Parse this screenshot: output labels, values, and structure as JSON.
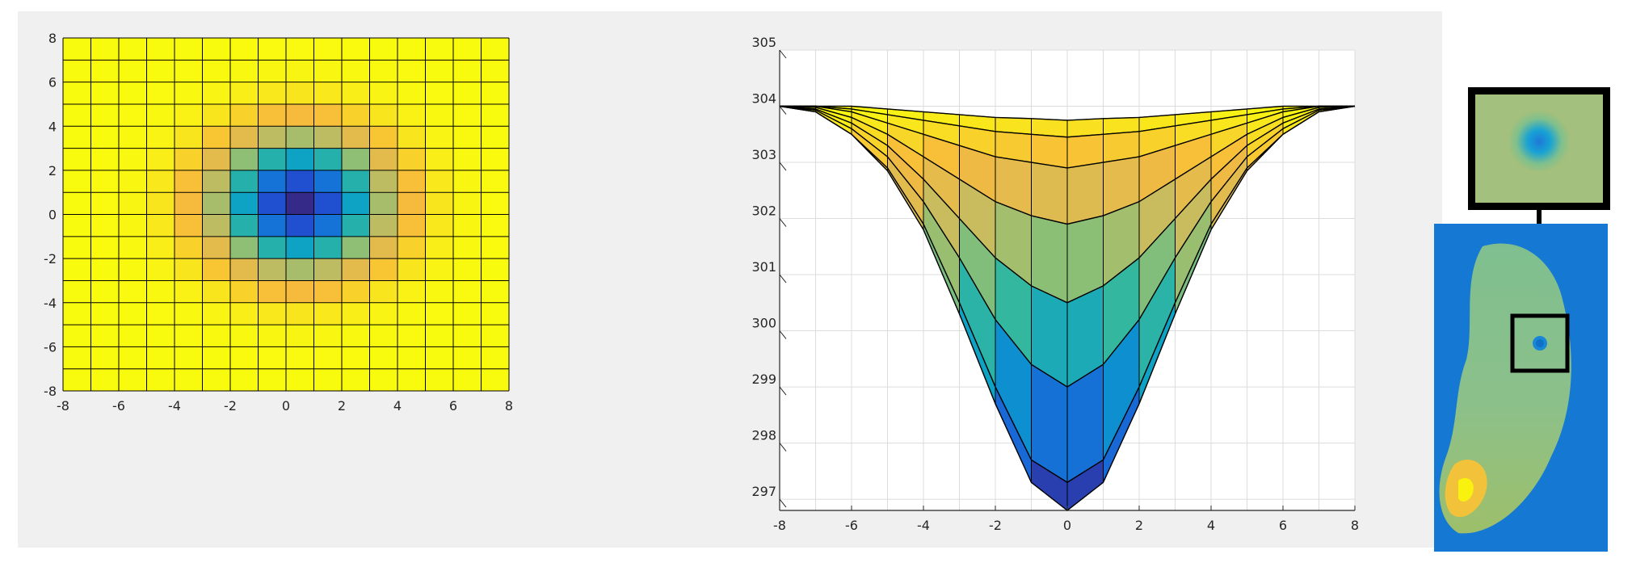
{
  "chart_data": [
    {
      "type": "heatmap",
      "title": "",
      "xlabel": "",
      "ylabel": "",
      "xlim": [
        -8,
        8
      ],
      "ylim": [
        -8,
        8
      ],
      "xticks": [
        "-8",
        "-6",
        "-4",
        "-2",
        "0",
        "2",
        "4",
        "6",
        "8"
      ],
      "yticks": [
        "8",
        "6",
        "4",
        "2",
        "0",
        "-2",
        "-4",
        "-6",
        "-8"
      ],
      "grid_step": 1,
      "colormap": "parula",
      "center": [
        0.5,
        0.5
      ],
      "value_range": [
        296.8,
        304.0
      ],
      "colors": {
        "low": "#352a87",
        "mid": "#0fa5c9",
        "high": "#f9fb0e"
      }
    },
    {
      "type": "surface",
      "title": "",
      "xlabel": "",
      "ylabel": "",
      "xlim": [
        -8,
        8
      ],
      "ylim": [
        296.8,
        305
      ],
      "xticks": [
        "-8",
        "-6",
        "-4",
        "-2",
        "0",
        "2",
        "4",
        "6",
        "8"
      ],
      "yticks": [
        "305",
        "304",
        "303",
        "302",
        "301",
        "300",
        "299",
        "298",
        "297"
      ],
      "x": [
        -8,
        -7,
        -6,
        -5,
        -4,
        -3,
        -2,
        -1,
        0,
        1,
        2,
        3,
        4,
        5,
        6,
        7,
        8
      ],
      "profiles": [
        {
          "values": [
            304.0,
            304.0,
            304.0,
            303.95,
            303.9,
            303.85,
            303.8,
            303.78,
            303.75,
            303.78,
            303.8,
            303.85,
            303.9,
            303.95,
            304.0,
            304.0,
            304.0
          ]
        },
        {
          "values": [
            304.0,
            304.0,
            303.95,
            303.85,
            303.75,
            303.65,
            303.55,
            303.5,
            303.45,
            303.5,
            303.55,
            303.65,
            303.75,
            303.85,
            303.95,
            304.0,
            304.0
          ]
        },
        {
          "values": [
            304.0,
            304.0,
            303.9,
            303.7,
            303.5,
            303.3,
            303.1,
            303.0,
            302.9,
            303.0,
            303.1,
            303.3,
            303.5,
            303.7,
            303.9,
            304.0,
            304.0
          ]
        },
        {
          "values": [
            304.0,
            303.98,
            303.8,
            303.5,
            303.1,
            302.7,
            302.3,
            302.05,
            301.9,
            302.05,
            302.3,
            302.7,
            303.1,
            303.5,
            303.8,
            303.98,
            304.0
          ]
        },
        {
          "values": [
            304.0,
            303.95,
            303.7,
            303.3,
            302.7,
            302.0,
            301.3,
            300.8,
            300.5,
            300.8,
            301.3,
            302.0,
            302.7,
            303.3,
            303.7,
            303.95,
            304.0
          ]
        },
        {
          "values": [
            304.0,
            303.93,
            303.6,
            303.1,
            302.3,
            301.3,
            300.2,
            299.4,
            299.0,
            299.4,
            300.2,
            301.3,
            302.3,
            303.1,
            303.6,
            303.93,
            304.0
          ]
        },
        {
          "values": [
            304.0,
            303.9,
            303.5,
            302.9,
            301.9,
            300.5,
            299.0,
            297.7,
            297.3,
            297.7,
            299.0,
            300.5,
            301.9,
            302.9,
            303.5,
            303.9,
            304.0
          ]
        },
        {
          "values": [
            304.0,
            303.9,
            303.5,
            302.85,
            301.8,
            300.3,
            298.7,
            297.3,
            296.8,
            297.3,
            298.7,
            300.3,
            301.8,
            302.85,
            303.5,
            303.9,
            304.0
          ]
        }
      ],
      "grid": true
    },
    {
      "type": "image",
      "title": "",
      "colormap": "parula",
      "has_inset_zoom": true
    }
  ]
}
